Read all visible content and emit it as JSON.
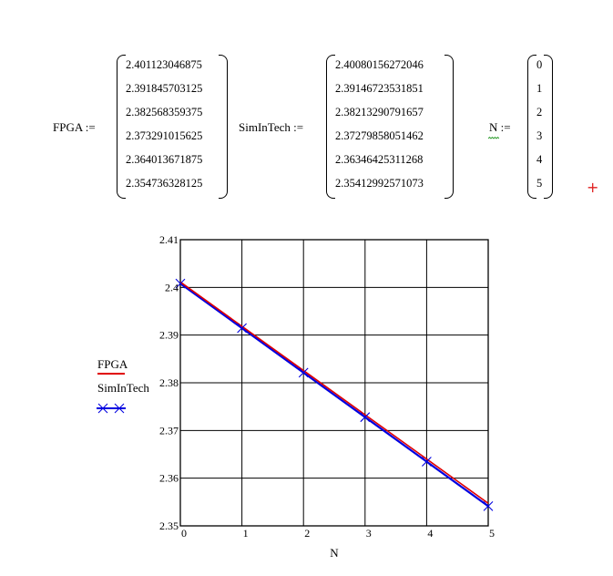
{
  "worksheet": {
    "fpga": {
      "name": "FPGA",
      "assign": ":=",
      "values": [
        "2.401123046875",
        "2.391845703125",
        "2.382568359375",
        "2.373291015625",
        "2.364013671875",
        "2.354736328125"
      ]
    },
    "simintech": {
      "name": "SimInTech",
      "assign": ":=",
      "values": [
        "2.40080156272046",
        "2.39146723531851",
        "2.38213290791657",
        "2.37279858051462",
        "2.36346425311268",
        "2.35412992571073"
      ]
    },
    "n": {
      "name": "N",
      "assign": ":=",
      "values": [
        "0",
        "1",
        "2",
        "3",
        "4",
        "5"
      ]
    },
    "insert_marker": "+",
    "marker_color": "#e02020"
  },
  "chart_data": {
    "type": "line",
    "x": [
      0,
      1,
      2,
      3,
      4,
      5
    ],
    "series": [
      {
        "name": "FPGA",
        "values": [
          2.401123046875,
          2.391845703125,
          2.382568359375,
          2.373291015625,
          2.364013671875,
          2.354736328125
        ],
        "color": "#e00000",
        "marker": "none"
      },
      {
        "name": "SimInTech",
        "values": [
          2.40080156272046,
          2.39146723531851,
          2.38213290791657,
          2.37279858051462,
          2.36346425311268,
          2.35412992571073
        ],
        "color": "#0000e0",
        "marker": "x"
      }
    ],
    "xlabel": "N",
    "ylabel": "",
    "xlim": [
      0,
      5
    ],
    "ylim": [
      2.35,
      2.41
    ],
    "xticks": [
      "0",
      "1",
      "2",
      "3",
      "4",
      "5"
    ],
    "yticks": [
      "2.35",
      "2.36",
      "2.37",
      "2.38",
      "2.39",
      "2.4",
      "2.41"
    ],
    "grid": true,
    "legend": "left"
  }
}
